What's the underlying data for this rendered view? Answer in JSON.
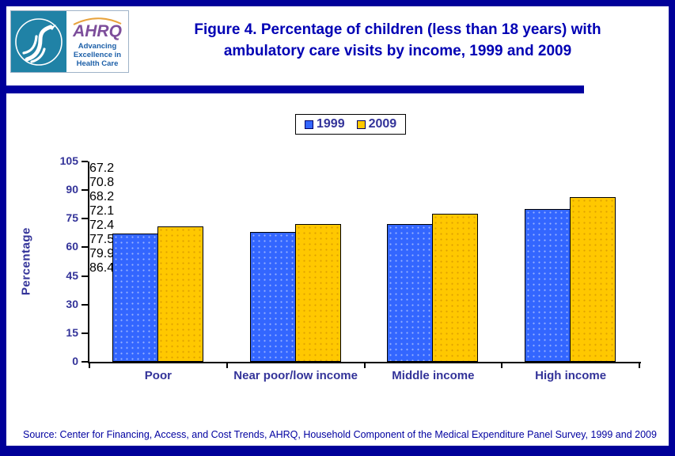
{
  "header": {
    "title_line1": "Figure 4. Percentage of children (less than 18 years) with",
    "title_line2": "ambulatory care visits by income, 1999 and 2009"
  },
  "logo": {
    "ahrq_acronym": "AHRQ",
    "tagline": "Advancing Excellence in Health Care"
  },
  "chart_data": {
    "type": "bar",
    "title": "Figure 4. Percentage of children (less than 18 years) with ambulatory care visits by income, 1999 and 2009",
    "categories": [
      "Poor",
      "Near poor/low income",
      "Middle income",
      "High income"
    ],
    "series": [
      {
        "name": "1999",
        "color": "#3366FF",
        "values": [
          67.2,
          68.2,
          72.4,
          79.9
        ]
      },
      {
        "name": "2009",
        "color": "#FFC800",
        "values": [
          70.8,
          72.1,
          77.5,
          86.4
        ]
      }
    ],
    "ylabel": "Percentage",
    "xlabel": "",
    "ylim": [
      0,
      105
    ],
    "yticks": [
      0,
      15,
      30,
      45,
      60,
      75,
      90,
      105
    ],
    "grid": false,
    "legend_position": "top-center",
    "value_labels": true
  },
  "source": "Source: Center for Financing, Access, and Cost Trends, AHRQ, Household Component of the Medical Expenditure Panel Survey, 1999 and 2009",
  "colors": {
    "frame_navy": "#000099",
    "divider_navy": "#0000A0",
    "title_text": "#0000B4",
    "chart_text": "#333399",
    "axis_black": "#000000",
    "bar_1999": "#3366FF",
    "bar_2009": "#FFC800",
    "hhs_teal": "#2082A6",
    "ahrq_purple": "#7D4E9B",
    "swoosh_orange": "#E8A33D",
    "tagline_blue": "#1C5FA8"
  }
}
